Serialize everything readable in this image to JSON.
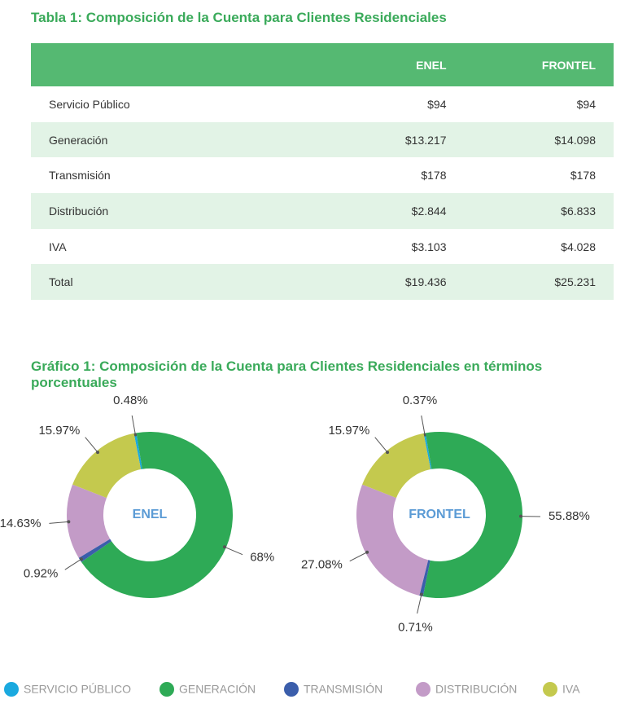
{
  "table": {
    "title": "Tabla 1: Composición de la Cuenta para Clientes Residenciales",
    "columns": [
      "ENEL",
      "FRONTEL"
    ],
    "rows": [
      [
        "Servicio Público",
        "$94",
        "$94"
      ],
      [
        "Generación",
        "$13.217",
        "$14.098"
      ],
      [
        "Transmisión",
        "$178",
        "$178"
      ],
      [
        "Distribución",
        "$2.844",
        "$6.833"
      ],
      [
        "IVA",
        "$3.103",
        "$4.028"
      ],
      [
        "Total",
        "$19.436",
        "$25.231"
      ]
    ]
  },
  "figure_title": "Gráfico 1: Composición de la Cuenta para Clientes Residenciales en términos porcentuales",
  "legend": {
    "categories": [
      "SERVICIO PÚBLICO",
      "GENERACIÓN",
      "TRANSMISIÓN",
      "DISTRIBUCIÓN",
      "IVA"
    ],
    "colors": [
      "#1aa9df",
      "#2eaa56",
      "#3b5eab",
      "#c39bc7",
      "#c4c94e"
    ]
  },
  "chart_data": [
    {
      "type": "pie",
      "center_label": "ENEL",
      "values": [
        0.48,
        68,
        0.92,
        14.63,
        15.97
      ],
      "value_labels": [
        "0.48%",
        "68%",
        "0.92%",
        "14.63%",
        "15.97%"
      ]
    },
    {
      "type": "pie",
      "center_label": "FRONTEL",
      "values": [
        0.37,
        55.88,
        0.71,
        27.08,
        15.97
      ],
      "value_labels": [
        "0.37%",
        "55.88%",
        "0.71%",
        "27.08%",
        "15.97%"
      ]
    }
  ]
}
